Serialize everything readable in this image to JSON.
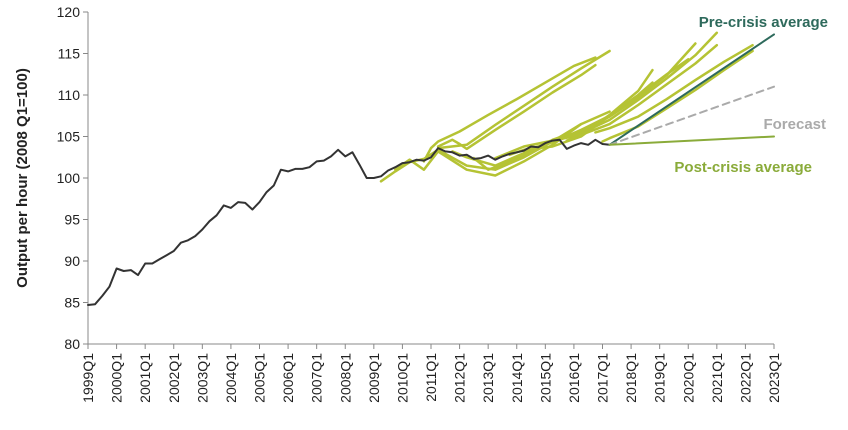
{
  "chart_data": {
    "type": "line",
    "title": "",
    "xlabel": "",
    "ylabel": "Output per hour (2008 Q1=100)",
    "ylim": [
      80,
      120
    ],
    "yticks": [
      80,
      85,
      90,
      95,
      100,
      105,
      110,
      115,
      120
    ],
    "xticks": [
      "1999Q1",
      "2000Q1",
      "2001Q1",
      "2002Q1",
      "2003Q1",
      "2004Q1",
      "2005Q1",
      "2006Q1",
      "2007Q1",
      "2008Q1",
      "2009Q1",
      "2010Q1",
      "2011Q1",
      "2012Q1",
      "2013Q1",
      "2014Q1",
      "2015Q1",
      "2016Q1",
      "2017Q1",
      "2018Q1",
      "2019Q1",
      "2020Q1",
      "2021Q1",
      "2022Q1",
      "2023Q1"
    ],
    "grid": false,
    "colors": {
      "actual": "#333333",
      "forecasts": "#b5c334",
      "pre_crisis": "#2e6a5c",
      "forecast_label": "#aaaaaa",
      "post_crisis": "#8aab3a",
      "axis": "#888888"
    },
    "annotations": {
      "pre_crisis": "Pre-crisis average",
      "forecast": "Forecast",
      "post_crisis": "Post-crisis average"
    },
    "series": [
      {
        "id": "actual",
        "x": [
          "1999Q1",
          "1999Q2",
          "1999Q3",
          "1999Q4",
          "2000Q1",
          "2000Q2",
          "2000Q3",
          "2000Q4",
          "2001Q1",
          "2001Q2",
          "2001Q3",
          "2001Q4",
          "2002Q1",
          "2002Q2",
          "2002Q3",
          "2002Q4",
          "2003Q1",
          "2003Q2",
          "2003Q3",
          "2003Q4",
          "2004Q1",
          "2004Q2",
          "2004Q3",
          "2004Q4",
          "2005Q1",
          "2005Q2",
          "2005Q3",
          "2005Q4",
          "2006Q1",
          "2006Q2",
          "2006Q3",
          "2006Q4",
          "2007Q1",
          "2007Q2",
          "2007Q3",
          "2007Q4",
          "2008Q1",
          "2008Q2",
          "2008Q3",
          "2008Q4",
          "2009Q1",
          "2009Q2",
          "2009Q3",
          "2009Q4",
          "2010Q1",
          "2010Q2",
          "2010Q3",
          "2010Q4",
          "2011Q1",
          "2011Q2",
          "2011Q3",
          "2011Q4",
          "2012Q1",
          "2012Q2",
          "2012Q3",
          "2012Q4",
          "2013Q1",
          "2013Q2",
          "2013Q3",
          "2013Q4",
          "2014Q1",
          "2014Q2",
          "2014Q3",
          "2014Q4",
          "2015Q1",
          "2015Q2",
          "2015Q3",
          "2015Q4",
          "2016Q1",
          "2016Q2",
          "2016Q3",
          "2016Q4",
          "2017Q1",
          "2017Q2"
        ],
        "values": [
          84.7,
          84.8,
          85.8,
          86.9,
          89.1,
          88.8,
          88.9,
          88.3,
          89.7,
          89.7,
          90.2,
          90.7,
          91.2,
          92.2,
          92.5,
          93.0,
          93.8,
          94.8,
          95.5,
          96.7,
          96.4,
          97.1,
          97.0,
          96.2,
          97.1,
          98.3,
          99.1,
          101.0,
          100.8,
          101.1,
          101.1,
          101.3,
          102.0,
          102.1,
          102.6,
          103.4,
          102.6,
          103.1,
          101.6,
          100.0,
          100.0,
          100.2,
          100.9,
          101.3,
          101.8,
          101.9,
          102.2,
          102.1,
          102.5,
          103.6,
          103.2,
          103.1,
          102.7,
          102.8,
          102.3,
          102.4,
          102.7,
          102.2,
          102.6,
          102.9,
          103.1,
          103.3,
          103.8,
          103.7,
          104.2,
          104.5,
          104.6,
          103.5,
          103.9,
          104.2,
          104.0,
          104.6,
          104.1,
          104.0
        ]
      },
      {
        "id": "pre-crisis-average",
        "name": "Pre-crisis average",
        "x": [
          "2017Q2",
          "2023Q1"
        ],
        "values": [
          104.0,
          117.3
        ]
      },
      {
        "id": "forecast",
        "name": "Forecast",
        "x": [
          "2017Q2",
          "2023Q1"
        ],
        "values": [
          104.0,
          111.0
        ]
      },
      {
        "id": "post-crisis-average",
        "name": "Post-crisis average",
        "x": [
          "2017Q2",
          "2023Q1"
        ],
        "values": [
          104.0,
          105.0
        ]
      },
      {
        "id": "forecast-2009",
        "x": [
          "2009Q2",
          "2009Q4",
          "2010Q2",
          "2010Q4",
          "2011Q2",
          "2012Q2",
          "2013Q2",
          "2014Q2",
          "2015Q2",
          "2016Q2"
        ],
        "values": [
          99.6,
          100.8,
          101.9,
          102.3,
          103.4,
          101.5,
          101.0,
          102.5,
          104.4,
          106.5
        ]
      },
      {
        "id": "forecast-2010",
        "x": [
          "2009Q4",
          "2010Q2",
          "2010Q4",
          "2011Q2",
          "2012Q2",
          "2013Q2",
          "2014Q2",
          "2015Q2",
          "2016Q2",
          "2017Q2"
        ],
        "values": [
          101.0,
          102.2,
          101.0,
          103.2,
          101.0,
          100.3,
          102.0,
          104.0,
          106.5,
          108.0
        ]
      },
      {
        "id": "forecast-2011",
        "x": [
          "2010Q4",
          "2011Q1",
          "2011Q2",
          "2012Q1",
          "2013Q1",
          "2014Q1",
          "2015Q1",
          "2016Q1",
          "2016Q4"
        ],
        "values": [
          102.0,
          103.6,
          104.4,
          105.6,
          107.6,
          109.5,
          111.5,
          113.5,
          114.5
        ]
      },
      {
        "id": "forecast-2012a",
        "x": [
          "2011Q2",
          "2012Q2",
          "2013Q2",
          "2014Q2",
          "2015Q2",
          "2016Q2",
          "2017Q2"
        ],
        "values": [
          103.6,
          104.0,
          106.4,
          108.7,
          111.0,
          113.2,
          115.3
        ]
      },
      {
        "id": "forecast-2012b",
        "x": [
          "2011Q2",
          "2011Q4",
          "2012Q1",
          "2012Q2",
          "2013Q2",
          "2014Q2",
          "2015Q2",
          "2016Q2",
          "2016Q4"
        ],
        "values": [
          103.8,
          104.6,
          104.1,
          103.5,
          105.8,
          108.0,
          110.3,
          112.4,
          113.6
        ]
      },
      {
        "id": "forecast-2012c",
        "x": [
          "2011Q4",
          "2012Q2",
          "2013Q2",
          "2014Q2",
          "2014Q4"
        ],
        "values": [
          103.2,
          102.5,
          101.5,
          103.0,
          103.8
        ]
      },
      {
        "id": "forecast-2013",
        "x": [
          "2012Q3",
          "2013Q1",
          "2013Q2",
          "2014Q2",
          "2015Q2",
          "2015Q4"
        ],
        "values": [
          102.4,
          101.0,
          101.3,
          102.7,
          104.6,
          105.2
        ]
      },
      {
        "id": "forecast-2014a",
        "x": [
          "2013Q2",
          "2014Q2",
          "2015Q2",
          "2016Q2",
          "2017Q2",
          "2018Q2",
          "2018Q4"
        ],
        "values": [
          102.4,
          103.8,
          104.5,
          105.2,
          107.6,
          110.5,
          113.0
        ]
      },
      {
        "id": "forecast-2014b",
        "x": [
          "2013Q4",
          "2014Q2",
          "2015Q2",
          "2016Q2",
          "2017Q2",
          "2018Q2",
          "2018Q4"
        ],
        "values": [
          102.8,
          103.4,
          103.8,
          105.0,
          107.5,
          110.0,
          111.5
        ]
      },
      {
        "id": "forecast-2015a",
        "x": [
          "2014Q2",
          "2015Q2",
          "2016Q2",
          "2017Q2",
          "2018Q2",
          "2019Q2",
          "2020Q1"
        ],
        "values": [
          103.3,
          104.3,
          105.8,
          107.5,
          109.9,
          112.5,
          114.3
        ]
      },
      {
        "id": "forecast-2015b",
        "x": [
          "2014Q4",
          "2015Q2",
          "2016Q2",
          "2017Q2",
          "2018Q2",
          "2019Q2",
          "2020Q2"
        ],
        "values": [
          103.6,
          104.4,
          105.6,
          107.4,
          109.7,
          112.4,
          116.2
        ]
      },
      {
        "id": "forecast-2016a",
        "x": [
          "2015Q2",
          "2016Q2",
          "2017Q2",
          "2018Q2",
          "2019Q2",
          "2020Q2",
          "2021Q1"
        ],
        "values": [
          104.4,
          105.4,
          107.0,
          109.4,
          112.0,
          114.8,
          117.5
        ]
      },
      {
        "id": "forecast-2016b",
        "x": [
          "2015Q4",
          "2016Q2",
          "2017Q2",
          "2018Q2",
          "2019Q2",
          "2020Q2",
          "2021Q1"
        ],
        "values": [
          104.5,
          105.2,
          106.5,
          108.8,
          111.3,
          113.8,
          116.0
        ]
      },
      {
        "id": "forecast-2017",
        "x": [
          "2016Q4",
          "2017Q2",
          "2018Q2",
          "2019Q2",
          "2020Q2",
          "2021Q2",
          "2022Q2"
        ],
        "values": [
          105.5,
          106.0,
          107.4,
          109.5,
          111.8,
          114.0,
          116.0
        ]
      },
      {
        "id": "forecast-2017b",
        "x": [
          "2017Q1",
          "2017Q2",
          "2018Q2",
          "2019Q2",
          "2020Q2",
          "2021Q2",
          "2022Q2"
        ],
        "values": [
          104.4,
          104.8,
          106.2,
          108.4,
          110.6,
          113.0,
          115.3
        ]
      }
    ]
  }
}
